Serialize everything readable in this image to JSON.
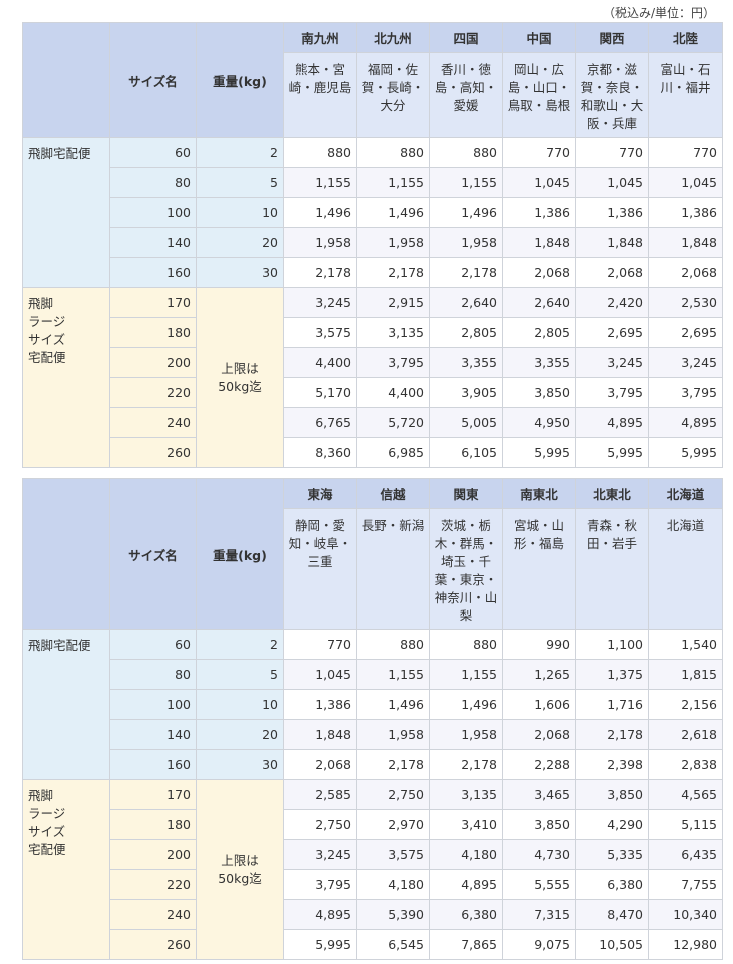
{
  "note": "（税込み/単位：円）",
  "labels": {
    "size": "サイズ名",
    "weight": "重量(kg)",
    "service_std": "飛脚宅配便",
    "service_large": "飛脚\nラージ\nサイズ\n宅配便",
    "limit": "上限は\n50kg迄"
  },
  "colors": {
    "header": "#c8d4ee",
    "subheader": "#dfe7f7",
    "standard": "#e2eff8",
    "large": "#fdf6e0"
  },
  "std_rows": [
    [
      "60",
      "2"
    ],
    [
      "80",
      "5"
    ],
    [
      "100",
      "10"
    ],
    [
      "140",
      "20"
    ],
    [
      "160",
      "30"
    ]
  ],
  "large_sizes": [
    "170",
    "180",
    "200",
    "220",
    "240",
    "260"
  ],
  "tables": [
    {
      "regions": [
        {
          "name": "南九州",
          "prefs": "熊本・宮崎・鹿児島"
        },
        {
          "name": "北九州",
          "prefs": "福岡・佐賀・長崎・大分"
        },
        {
          "name": "四国",
          "prefs": "香川・徳島・高知・愛媛"
        },
        {
          "name": "中国",
          "prefs": "岡山・広島・山口・鳥取・島根"
        },
        {
          "name": "関西",
          "prefs": "京都・滋賀・奈良・和歌山・大阪・兵庫"
        },
        {
          "name": "北陸",
          "prefs": "富山・石川・福井"
        }
      ],
      "prices": [
        [
          "880",
          "880",
          "880",
          "770",
          "770",
          "770"
        ],
        [
          "1,155",
          "1,155",
          "1,155",
          "1,045",
          "1,045",
          "1,045"
        ],
        [
          "1,496",
          "1,496",
          "1,496",
          "1,386",
          "1,386",
          "1,386"
        ],
        [
          "1,958",
          "1,958",
          "1,958",
          "1,848",
          "1,848",
          "1,848"
        ],
        [
          "2,178",
          "2,178",
          "2,178",
          "2,068",
          "2,068",
          "2,068"
        ],
        [
          "3,245",
          "2,915",
          "2,640",
          "2,640",
          "2,420",
          "2,530"
        ],
        [
          "3,575",
          "3,135",
          "2,805",
          "2,805",
          "2,695",
          "2,695"
        ],
        [
          "4,400",
          "3,795",
          "3,355",
          "3,355",
          "3,245",
          "3,245"
        ],
        [
          "5,170",
          "4,400",
          "3,905",
          "3,850",
          "3,795",
          "3,795"
        ],
        [
          "6,765",
          "5,720",
          "5,005",
          "4,950",
          "4,895",
          "4,895"
        ],
        [
          "8,360",
          "6,985",
          "6,105",
          "5,995",
          "5,995",
          "5,995"
        ]
      ]
    },
    {
      "regions": [
        {
          "name": "東海",
          "prefs": "静岡・愛知・岐阜・三重"
        },
        {
          "name": "信越",
          "prefs": "長野・新潟"
        },
        {
          "name": "関東",
          "prefs": "茨城・栃木・群馬・埼玉・千葉・東京・神奈川・山梨"
        },
        {
          "name": "南東北",
          "prefs": "宮城・山形・福島"
        },
        {
          "name": "北東北",
          "prefs": "青森・秋田・岩手"
        },
        {
          "name": "北海道",
          "prefs": "北海道"
        }
      ],
      "prices": [
        [
          "770",
          "880",
          "880",
          "990",
          "1,100",
          "1,540"
        ],
        [
          "1,045",
          "1,155",
          "1,155",
          "1,265",
          "1,375",
          "1,815"
        ],
        [
          "1,386",
          "1,496",
          "1,496",
          "1,606",
          "1,716",
          "2,156"
        ],
        [
          "1,848",
          "1,958",
          "1,958",
          "2,068",
          "2,178",
          "2,618"
        ],
        [
          "2,068",
          "2,178",
          "2,178",
          "2,288",
          "2,398",
          "2,838"
        ],
        [
          "2,585",
          "2,750",
          "3,135",
          "3,465",
          "3,850",
          "4,565"
        ],
        [
          "2,750",
          "2,970",
          "3,410",
          "3,850",
          "4,290",
          "5,115"
        ],
        [
          "3,245",
          "3,575",
          "4,180",
          "4,730",
          "5,335",
          "6,435"
        ],
        [
          "3,795",
          "4,180",
          "4,895",
          "5,555",
          "6,380",
          "7,755"
        ],
        [
          "4,895",
          "5,390",
          "6,380",
          "7,315",
          "8,470",
          "10,340"
        ],
        [
          "5,995",
          "6,545",
          "7,865",
          "9,075",
          "10,505",
          "12,980"
        ]
      ]
    }
  ]
}
